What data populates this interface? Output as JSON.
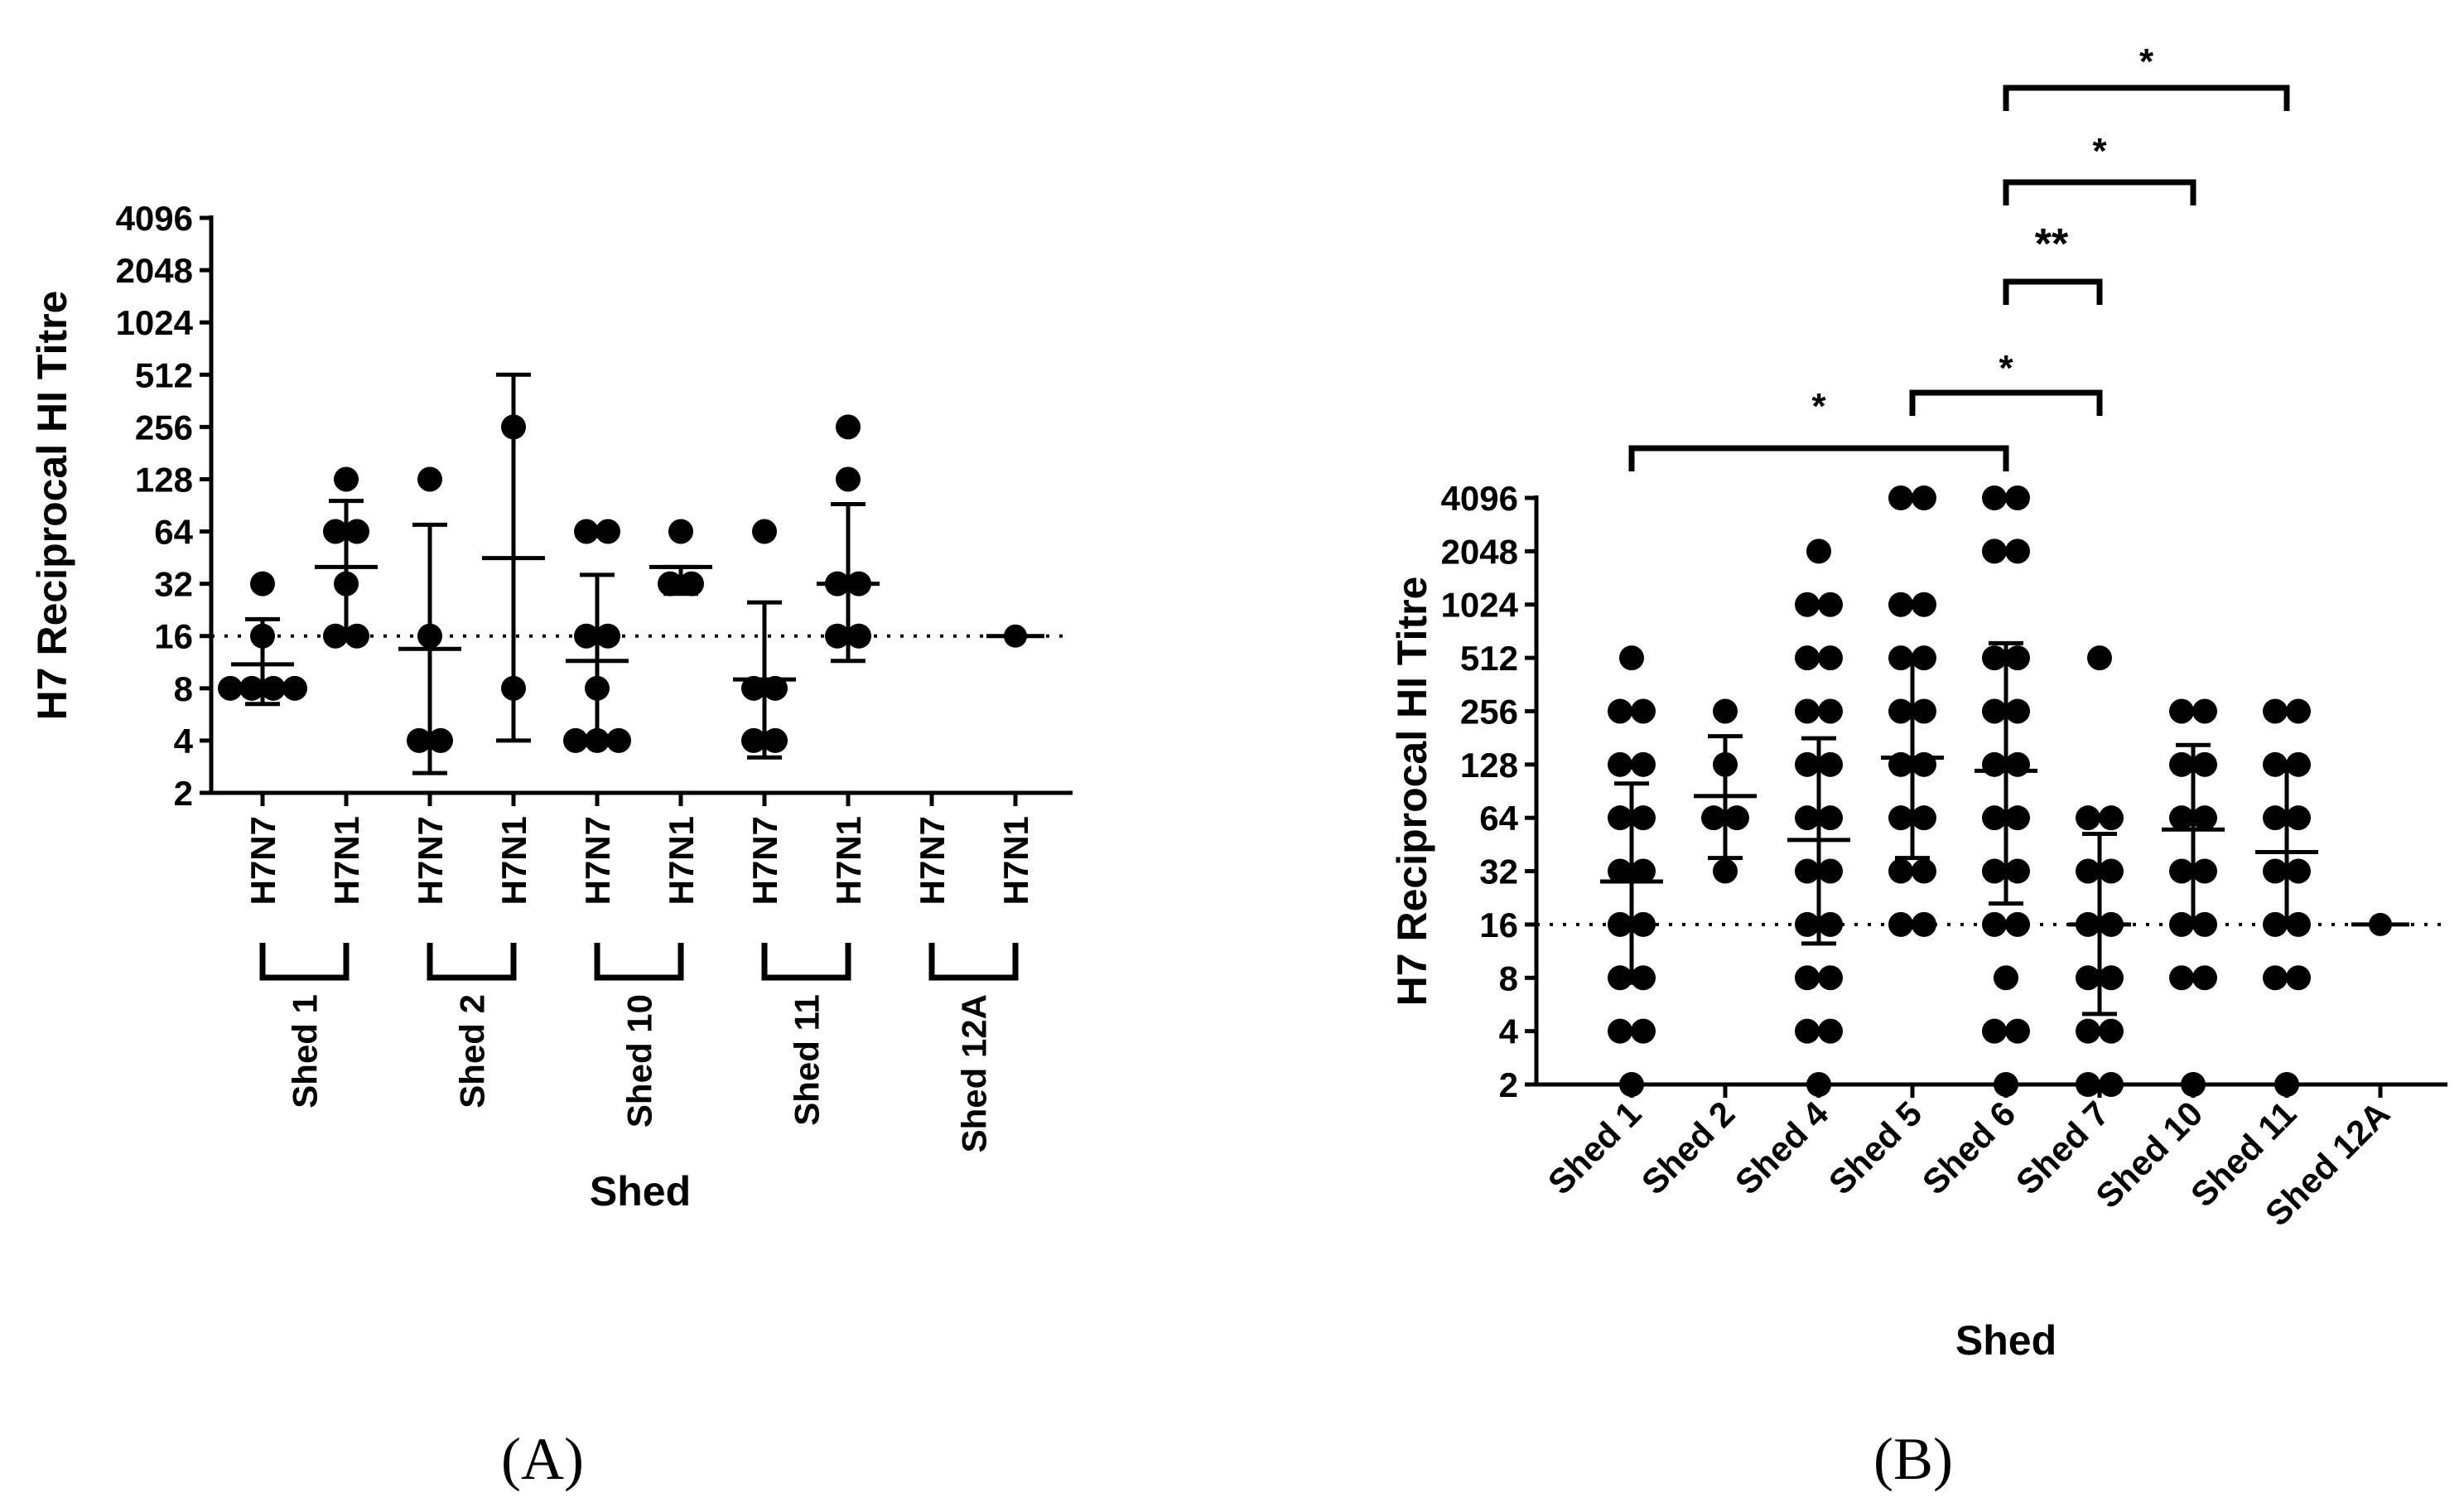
{
  "panels": {
    "a": {
      "label": "(A)"
    },
    "b": {
      "label": "(B)"
    }
  },
  "colors": {
    "ink": "#000000",
    "background": "#ffffff"
  },
  "chart_data": [
    {
      "id": "A",
      "type": "scatter",
      "title": "",
      "xlabel": "Shed",
      "ylabel": "H7 Reciprocal HI Titre",
      "y_scale": "log2",
      "ylim": [
        2,
        4096
      ],
      "y_ticks": [
        2,
        4,
        8,
        16,
        32,
        64,
        128,
        256,
        512,
        1024,
        2048,
        4096
      ],
      "reference_line": {
        "y": 16,
        "style": "dotted"
      },
      "groups": [
        {
          "name": "Shed 1",
          "categories": [
            "H7N7",
            "H7N1"
          ]
        },
        {
          "name": "Shed 2",
          "categories": [
            "H7N7",
            "H7N1"
          ]
        },
        {
          "name": "Shed 10",
          "categories": [
            "H7N7",
            "H7N1"
          ]
        },
        {
          "name": "Shed 11",
          "categories": [
            "H7N7",
            "H7N1"
          ]
        },
        {
          "name": "Shed 12A",
          "categories": [
            "H7N7",
            "H7N1"
          ]
        }
      ],
      "series": [
        {
          "group": "Shed 1",
          "category": "H7N7",
          "points": [
            32,
            16,
            8,
            8,
            8,
            8
          ],
          "mean": 11,
          "err_low": 6.5,
          "err_high": 20
        },
        {
          "group": "Shed 1",
          "category": "H7N1",
          "points": [
            128,
            64,
            64,
            32,
            16,
            16
          ],
          "mean": 40,
          "err_low": 16,
          "err_high": 96
        },
        {
          "group": "Shed 2",
          "category": "H7N7",
          "points": [
            128,
            16,
            4,
            4
          ],
          "mean": 13.5,
          "err_low": 2.6,
          "err_high": 70
        },
        {
          "group": "Shed 2",
          "category": "H7N1",
          "points": [
            256,
            8
          ],
          "mean": 45,
          "err_low": 4,
          "err_high": 512
        },
        {
          "group": "Shed 10",
          "category": "H7N7",
          "points": [
            64,
            64,
            16,
            16,
            8,
            4,
            4,
            4
          ],
          "mean": 11.5,
          "err_low": 4,
          "err_high": 36
        },
        {
          "group": "Shed 10",
          "category": "H7N1",
          "points": [
            64,
            32,
            32
          ],
          "mean": 40,
          "err_low": 28,
          "err_high": 40
        },
        {
          "group": "Shed 11",
          "category": "H7N7",
          "points": [
            64,
            8,
            8,
            4,
            4
          ],
          "mean": 9,
          "err_low": 3.2,
          "err_high": 25
        },
        {
          "group": "Shed 11",
          "category": "H7N1",
          "points": [
            256,
            128,
            32,
            32,
            16,
            16
          ],
          "mean": 32,
          "err_low": 11.5,
          "err_high": 92
        },
        {
          "group": "Shed 12A",
          "category": "H7N7",
          "points": [],
          "mean": null,
          "err_low": null,
          "err_high": null
        },
        {
          "group": "Shed 12A",
          "category": "H7N1",
          "points": [
            16
          ],
          "mean": 16,
          "err_low": null,
          "err_high": null
        }
      ]
    },
    {
      "id": "B",
      "type": "scatter",
      "title": "",
      "xlabel": "Shed",
      "ylabel": "H7 Reciprocal HI Titre",
      "y_scale": "log2",
      "ylim": [
        2,
        4096
      ],
      "y_ticks": [
        2,
        4,
        8,
        16,
        32,
        64,
        128,
        256,
        512,
        1024,
        2048,
        4096
      ],
      "categories": [
        "Shed 1",
        "Shed 2",
        "Shed 4",
        "Shed 5",
        "Shed 6",
        "Shed 7",
        "Shed 10",
        "Shed 11",
        "Shed 12A"
      ],
      "reference_line": {
        "y": 16,
        "style": "dotted"
      },
      "series": [
        {
          "category": "Shed 1",
          "points": [
            512,
            256,
            256,
            128,
            128,
            64,
            64,
            32,
            32,
            16,
            16,
            8,
            8,
            4,
            4,
            2
          ],
          "mean": 28,
          "err_low": 7.5,
          "err_high": 100
        },
        {
          "category": "Shed 2",
          "points": [
            256,
            128,
            64,
            64,
            32
          ],
          "mean": 85,
          "err_low": 38,
          "err_high": 185
        },
        {
          "category": "Shed 4",
          "points": [
            2048,
            1024,
            1024,
            512,
            512,
            256,
            256,
            128,
            128,
            64,
            64,
            32,
            32,
            16,
            16,
            8,
            8,
            4,
            4,
            2
          ],
          "mean": 48,
          "err_low": 12.5,
          "err_high": 180
        },
        {
          "category": "Shed 5",
          "points": [
            4096,
            4096,
            1024,
            1024,
            512,
            512,
            256,
            256,
            128,
            128,
            64,
            64,
            32,
            32,
            16,
            16
          ],
          "mean": 140,
          "err_low": 38,
          "err_high": 520
        },
        {
          "category": "Shed 6",
          "points": [
            4096,
            4096,
            2048,
            2048,
            512,
            512,
            256,
            256,
            128,
            128,
            64,
            64,
            32,
            32,
            16,
            16,
            8,
            4,
            4,
            2
          ],
          "mean": 118,
          "err_low": 21,
          "err_high": 620
        },
        {
          "category": "Shed 7",
          "points": [
            512,
            64,
            64,
            32,
            32,
            16,
            16,
            8,
            8,
            4,
            4,
            2,
            2
          ],
          "mean": 16,
          "err_low": 5,
          "err_high": 52
        },
        {
          "category": "Shed 10",
          "points": [
            256,
            256,
            128,
            128,
            64,
            64,
            32,
            32,
            16,
            16,
            8,
            8,
            2
          ],
          "mean": 55,
          "err_low": 16,
          "err_high": 165
        },
        {
          "category": "Shed 11",
          "points": [
            256,
            256,
            128,
            128,
            64,
            64,
            32,
            32,
            16,
            16,
            8,
            8,
            2
          ],
          "mean": 41,
          "err_low": 16,
          "err_high": 120
        },
        {
          "category": "Shed 12A",
          "points": [
            16
          ],
          "mean": 16,
          "err_low": null,
          "err_high": null
        }
      ],
      "significance": [
        {
          "from": "Shed 1",
          "to": "Shed 6",
          "label": "*"
        },
        {
          "from": "Shed 5",
          "to": "Shed 7",
          "label": "*"
        },
        {
          "from": "Shed 6",
          "to": "Shed 7",
          "label": "**"
        },
        {
          "from": "Shed 6",
          "to": "Shed 10",
          "label": "*"
        },
        {
          "from": "Shed 6",
          "to": "Shed 11",
          "label": "*"
        }
      ]
    }
  ]
}
